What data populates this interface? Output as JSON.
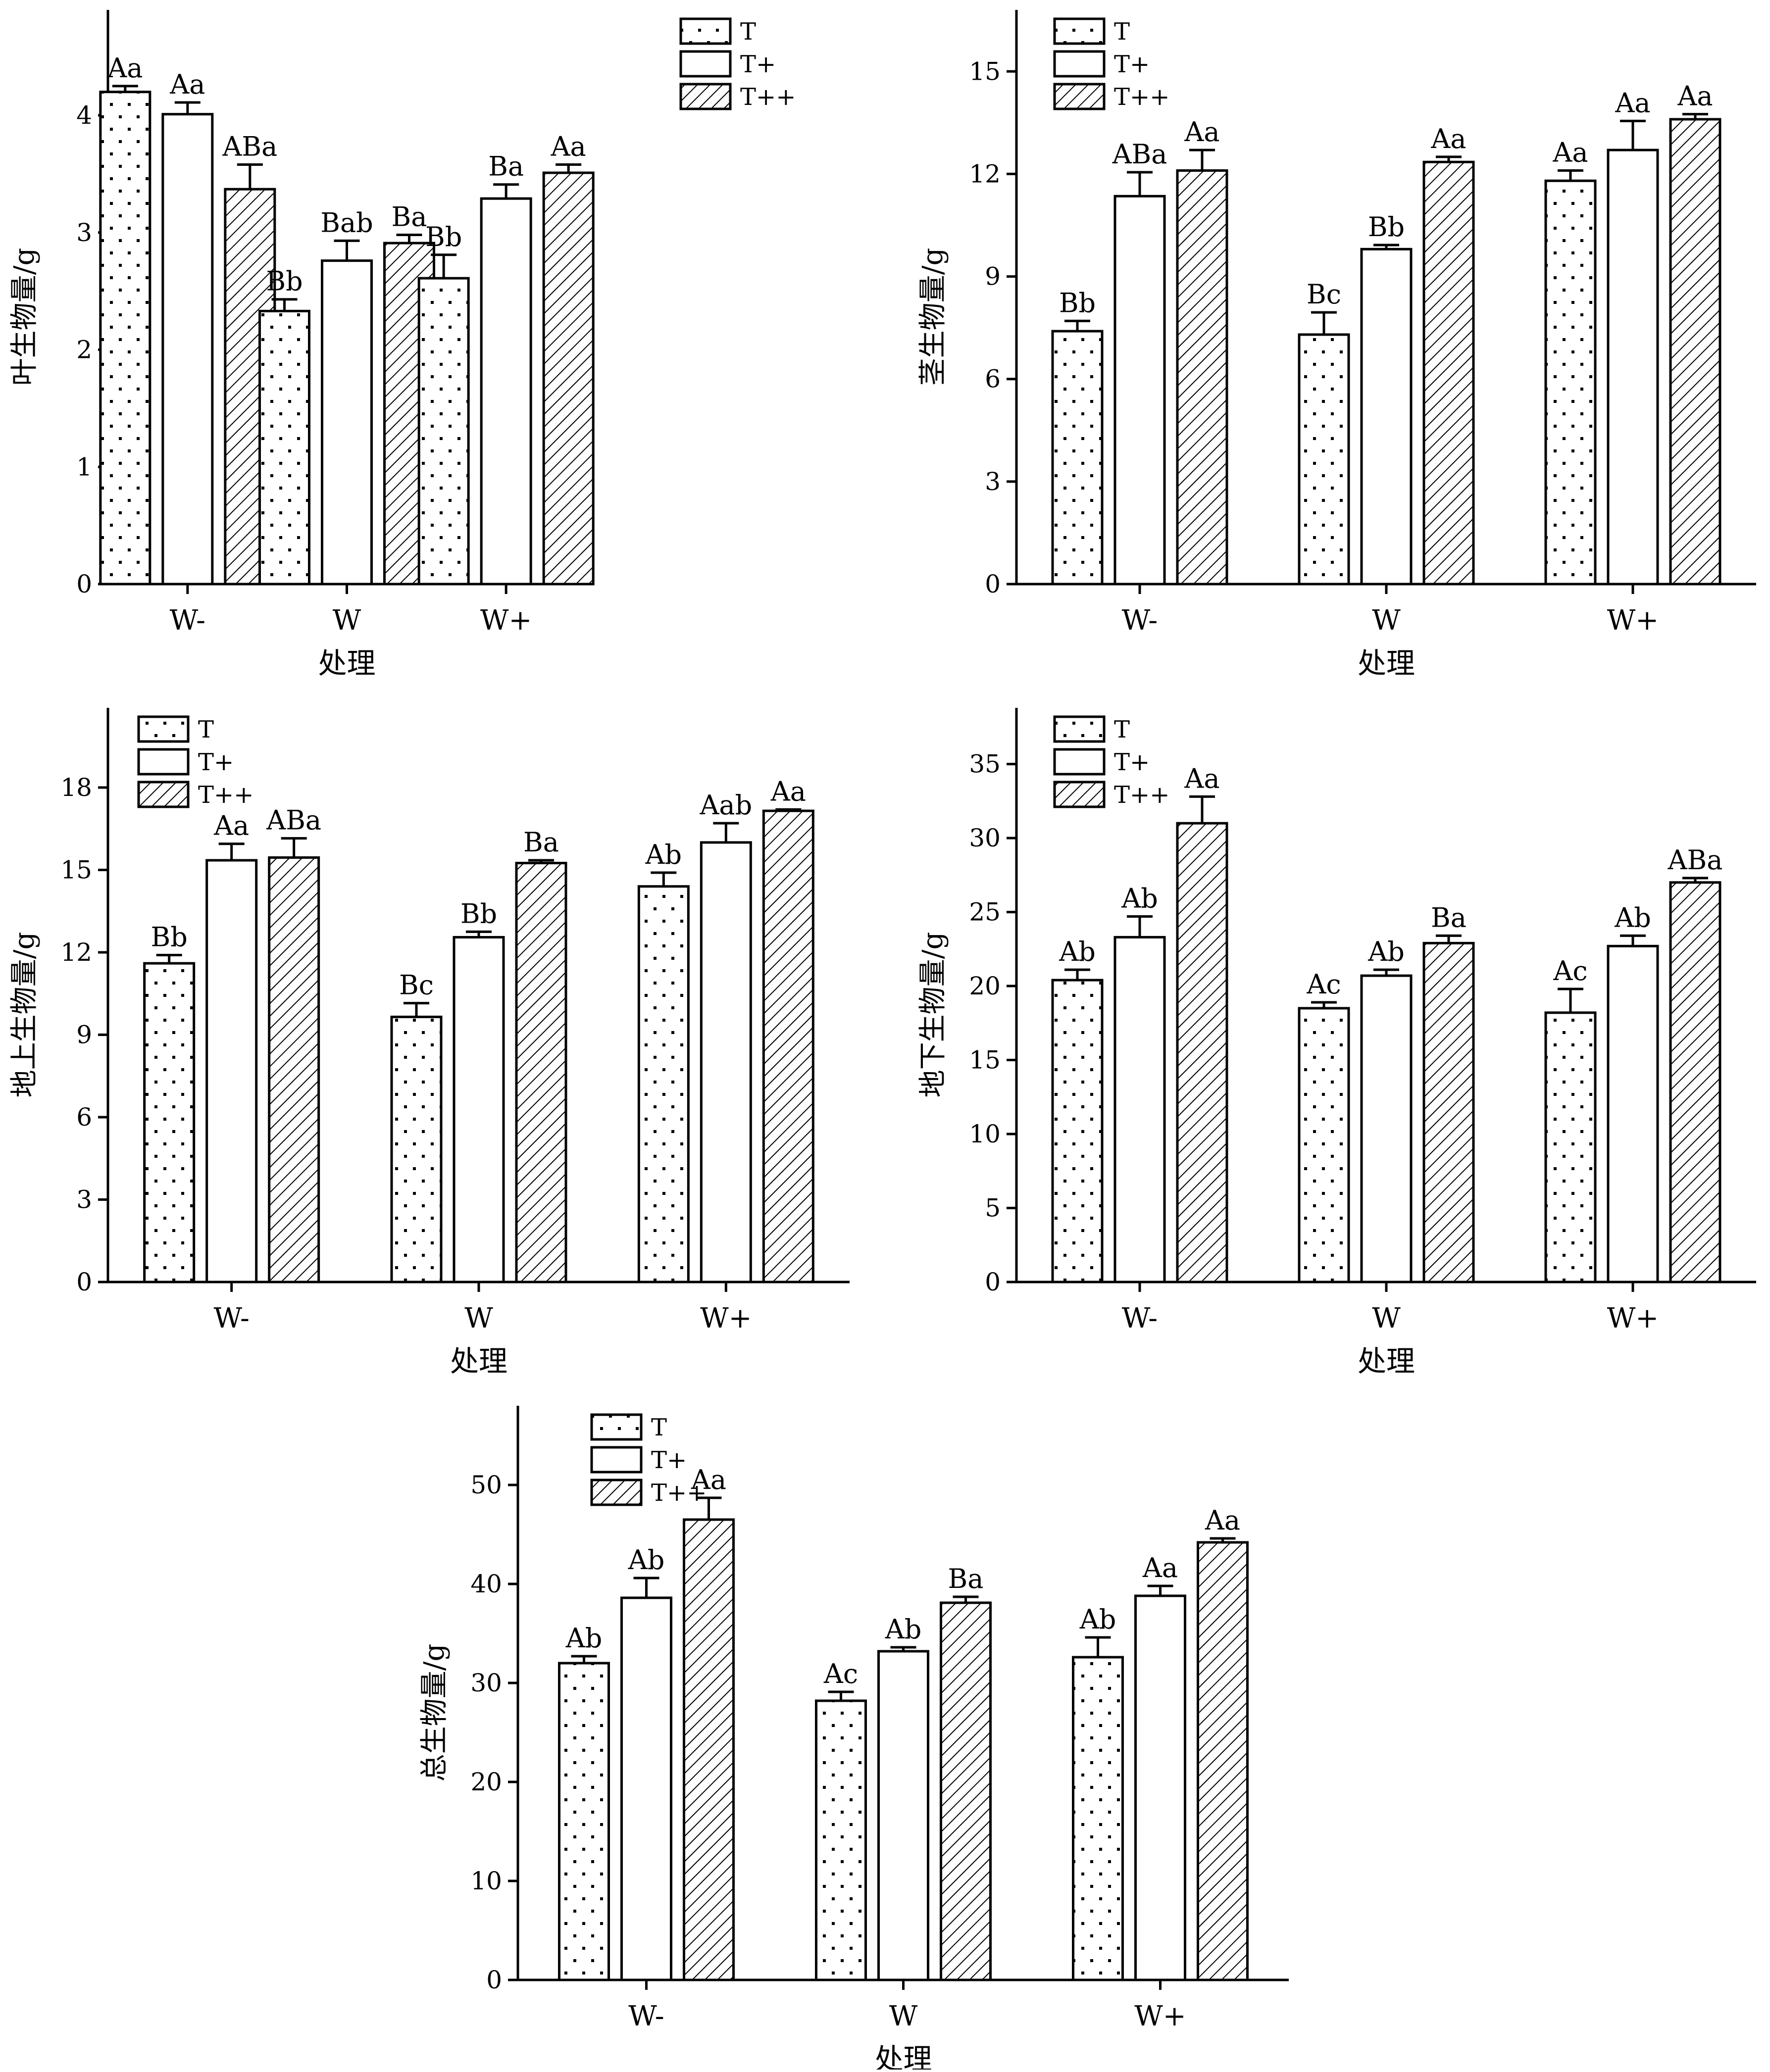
{
  "legend": {
    "items": [
      {
        "label": "T",
        "pattern": "dots"
      },
      {
        "label": "T+",
        "pattern": "blank"
      },
      {
        "label": "T++",
        "pattern": "hatch"
      }
    ]
  },
  "chart_data": [
    {
      "type": "bar",
      "xlabel": "处理",
      "ylabel": "叶生物量/g",
      "categories": [
        "W-",
        "W",
        "W+"
      ],
      "ylim": [
        0,
        4.9
      ],
      "yticks": [
        0,
        1,
        2,
        3,
        4
      ],
      "legend_position": "top-right",
      "series": [
        {
          "name": "T",
          "values": [
            4.2,
            2.33,
            2.61
          ],
          "errors": [
            0.05,
            0.1,
            0.2
          ],
          "labels": [
            "Aa",
            "Bb",
            "Bb"
          ]
        },
        {
          "name": "T+",
          "values": [
            4.01,
            2.76,
            3.29
          ],
          "errors": [
            0.1,
            0.17,
            0.12
          ],
          "labels": [
            "Aa",
            "Bab",
            "Ba"
          ]
        },
        {
          "name": "T++",
          "values": [
            3.37,
            2.91,
            3.51
          ],
          "errors": [
            0.21,
            0.07,
            0.07
          ],
          "labels": [
            "ABa",
            "Ba",
            "Aa"
          ]
        }
      ]
    },
    {
      "type": "bar",
      "xlabel": "处理",
      "ylabel": "茎生物量/g",
      "categories": [
        "W-",
        "W",
        "W+"
      ],
      "ylim": [
        0,
        16.8
      ],
      "yticks": [
        0,
        3,
        6,
        9,
        12,
        15
      ],
      "legend_position": "top-left",
      "series": [
        {
          "name": "T",
          "values": [
            7.4,
            7.3,
            11.8
          ],
          "errors": [
            0.3,
            0.65,
            0.3
          ],
          "labels": [
            "Bb",
            "Bc",
            "Aa"
          ]
        },
        {
          "name": "T+",
          "values": [
            11.35,
            9.8,
            12.7
          ],
          "errors": [
            0.7,
            0.12,
            0.85
          ],
          "labels": [
            "ABa",
            "Bb",
            "Aa"
          ]
        },
        {
          "name": "T++",
          "values": [
            12.1,
            12.35,
            13.6
          ],
          "errors": [
            0.6,
            0.15,
            0.15
          ],
          "labels": [
            "Aa",
            "Aa",
            "Aa"
          ]
        }
      ]
    },
    {
      "type": "bar",
      "xlabel": "处理",
      "ylabel": "地上生物量/g",
      "categories": [
        "W-",
        "W",
        "W+"
      ],
      "ylim": [
        0,
        20.9
      ],
      "yticks": [
        0,
        3,
        6,
        9,
        12,
        15,
        18
      ],
      "legend_position": "top-left",
      "series": [
        {
          "name": "T",
          "values": [
            11.6,
            9.65,
            14.4
          ],
          "errors": [
            0.3,
            0.5,
            0.5
          ],
          "labels": [
            "Bb",
            "Bc",
            "Ab"
          ]
        },
        {
          "name": "T+",
          "values": [
            15.35,
            12.55,
            16.0
          ],
          "errors": [
            0.6,
            0.2,
            0.7
          ],
          "labels": [
            "Aa",
            "Bb",
            "Aab"
          ]
        },
        {
          "name": "T++",
          "values": [
            15.45,
            15.25,
            17.15
          ],
          "errors": [
            0.7,
            0.1,
            0.05
          ],
          "labels": [
            "ABa",
            "Ba",
            "Aa"
          ]
        }
      ]
    },
    {
      "type": "bar",
      "xlabel": "处理",
      "ylabel": "地下生物量/g",
      "categories": [
        "W-",
        "W",
        "W+"
      ],
      "ylim": [
        0,
        38.8
      ],
      "yticks": [
        0,
        5,
        10,
        15,
        20,
        25,
        30,
        35
      ],
      "legend_position": "top-left",
      "series": [
        {
          "name": "T",
          "values": [
            20.4,
            18.5,
            18.2
          ],
          "errors": [
            0.7,
            0.4,
            1.6
          ],
          "labels": [
            "Ab",
            "Ac",
            "Ac"
          ]
        },
        {
          "name": "T+",
          "values": [
            23.3,
            20.7,
            22.7
          ],
          "errors": [
            1.4,
            0.4,
            0.7
          ],
          "labels": [
            "Ab",
            "Ab",
            "Ab"
          ]
        },
        {
          "name": "T++",
          "values": [
            31.0,
            22.9,
            27.0
          ],
          "errors": [
            1.8,
            0.5,
            0.3
          ],
          "labels": [
            "Aa",
            "Ba",
            "ABa"
          ]
        }
      ]
    },
    {
      "type": "bar",
      "xlabel": "处理",
      "ylabel": "总生物量/g",
      "categories": [
        "W-",
        "W",
        "W+"
      ],
      "ylim": [
        0,
        58
      ],
      "yticks": [
        0,
        10,
        20,
        30,
        40,
        50
      ],
      "legend_position": "top-left",
      "series": [
        {
          "name": "T",
          "values": [
            32.0,
            28.2,
            32.6
          ],
          "errors": [
            0.7,
            0.9,
            2.0
          ],
          "labels": [
            "Ab",
            "Ac",
            "Ab"
          ]
        },
        {
          "name": "T+",
          "values": [
            38.6,
            33.2,
            38.8
          ],
          "errors": [
            2.0,
            0.4,
            1.0
          ],
          "labels": [
            "Ab",
            "Ab",
            "Aa"
          ]
        },
        {
          "name": "T++",
          "values": [
            46.5,
            38.1,
            44.2
          ],
          "errors": [
            2.2,
            0.6,
            0.4
          ],
          "labels": [
            "Aa",
            "Ba",
            "Aa"
          ]
        }
      ]
    }
  ]
}
